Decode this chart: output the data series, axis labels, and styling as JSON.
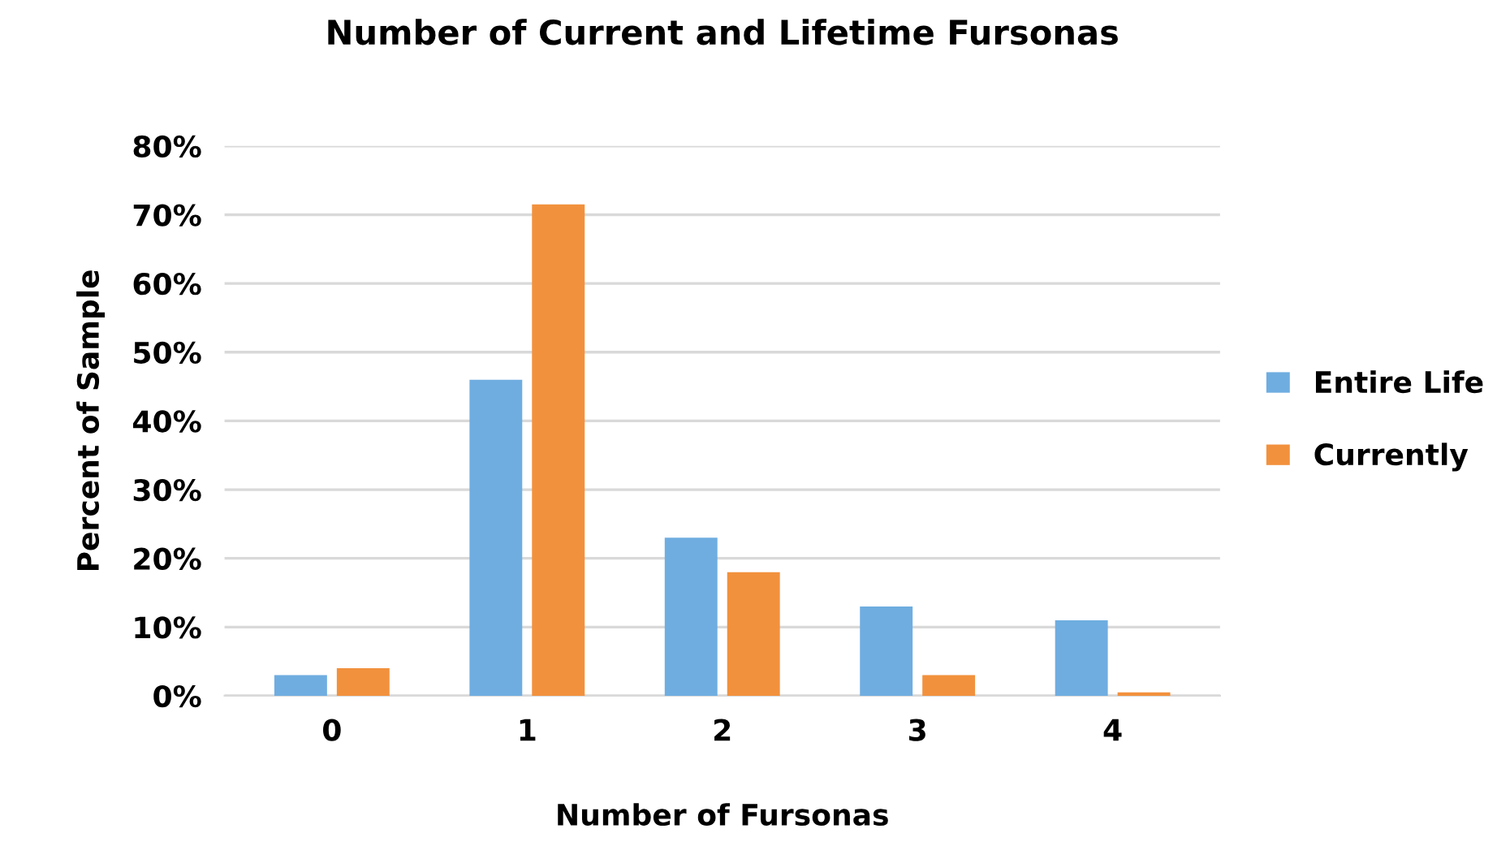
{
  "chart_data": {
    "type": "bar",
    "title": "Number of Current and Lifetime Fursonas",
    "xlabel": "Number of Fursonas",
    "ylabel": "Percent of Sample",
    "categories": [
      "0",
      "1",
      "2",
      "3",
      "4"
    ],
    "series": [
      {
        "name": "Entire Life",
        "color": "#6fade0",
        "values": [
          3,
          46,
          23,
          13,
          11
        ]
      },
      {
        "name": "Currently",
        "color": "#f2913d",
        "values": [
          4,
          71.5,
          18,
          3,
          0.5
        ]
      }
    ],
    "ylim": [
      0,
      80
    ],
    "yticks": [
      {
        "value": 0,
        "label": "0%"
      },
      {
        "value": 10,
        "label": "10%"
      },
      {
        "value": 20,
        "label": "20%"
      },
      {
        "value": 30,
        "label": "30%"
      },
      {
        "value": 40,
        "label": "40%"
      },
      {
        "value": 50,
        "label": "50%"
      },
      {
        "value": 60,
        "label": "60%"
      },
      {
        "value": 70,
        "label": "70%"
      },
      {
        "value": 80,
        "label": "80%"
      }
    ],
    "grid": "y",
    "legend": "right"
  }
}
